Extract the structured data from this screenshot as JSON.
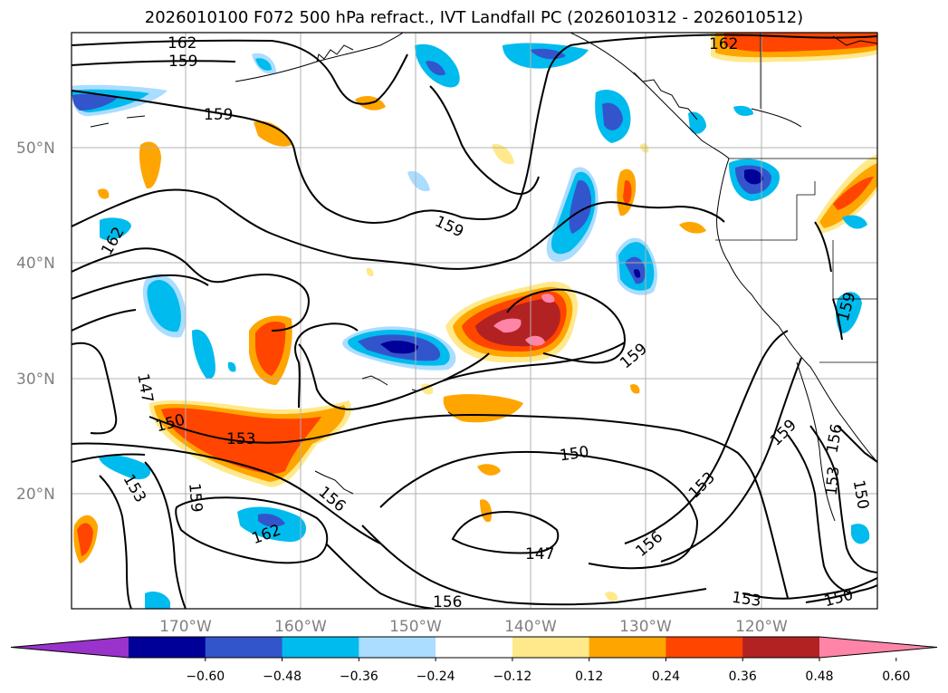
{
  "title": "2026010100 F072 500 hPa refract., IVT Landfall PC (2026010312 - 2026010512)",
  "lat_labels": [
    "50°N",
    "40°N",
    "30°N",
    "20°N"
  ],
  "lon_labels": [
    "170°W",
    "160°W",
    "150°W",
    "140°W",
    "130°W",
    "120°W"
  ],
  "contour_labels": [
    "162",
    "159",
    "159",
    "162",
    "162",
    "159",
    "159",
    "147",
    "150",
    "153",
    "159",
    "153",
    "162",
    "156",
    "150",
    "159",
    "153",
    "156",
    "147",
    "156",
    "153",
    "150",
    "159",
    "156",
    "153",
    "150"
  ],
  "colorbar": {
    "colors": [
      "#9933cc",
      "#000099",
      "#3355cc",
      "#00bbee",
      "#aaddff",
      "#ffffff",
      "#ffe98a",
      "#ffa500",
      "#ff4500",
      "#b22222",
      "#ff85a8"
    ],
    "tick_labels": [
      "−0.60",
      "−0.48",
      "−0.36",
      "−0.24",
      "−0.12",
      "0.12",
      "0.24",
      "0.36",
      "0.48",
      "0.60"
    ]
  }
}
